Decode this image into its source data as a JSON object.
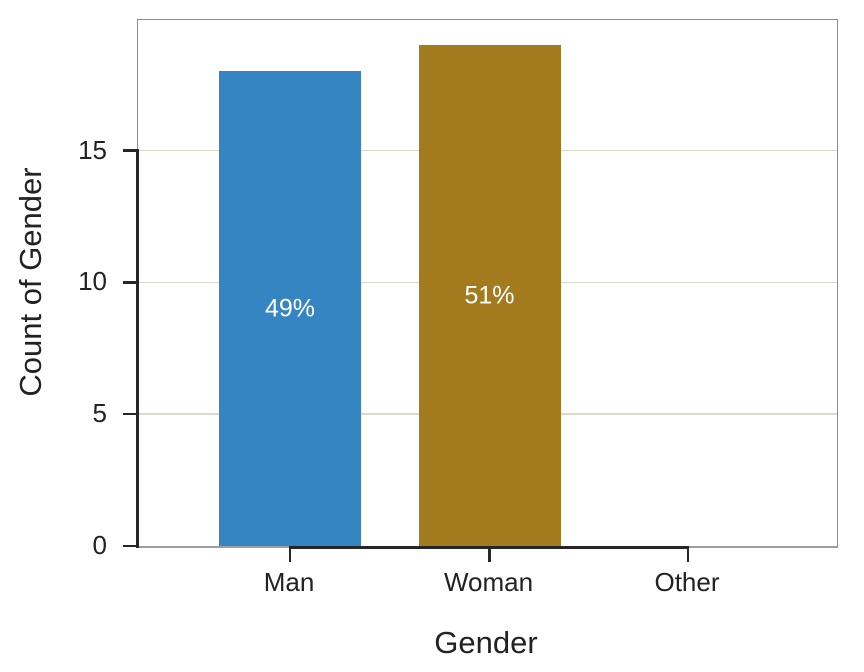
{
  "figure": {
    "background": "#ffffff",
    "text_color": "#222222"
  },
  "style": {
    "grid_color": "#ded8ca",
    "box_border_color": "#8c8c8c",
    "bottom_spine_color": "#9e9e9e",
    "dark_spine_color": "#262626",
    "bar_label_color": "#ffffff"
  },
  "chart_data": {
    "type": "bar",
    "title": "",
    "xlabel": "Gender",
    "ylabel": "Count of Gender",
    "categories": [
      "Man",
      "Woman",
      "Other"
    ],
    "values": [
      18,
      19,
      0
    ],
    "bar_labels": [
      "49%",
      "51%",
      ""
    ],
    "bar_colors": [
      "#3585c3",
      "#a47a1e",
      null
    ],
    "yticks": [
      0,
      5,
      10,
      15
    ],
    "ylim": [
      0,
      19.95
    ],
    "grid": "horizontal-only",
    "legend": "none"
  }
}
